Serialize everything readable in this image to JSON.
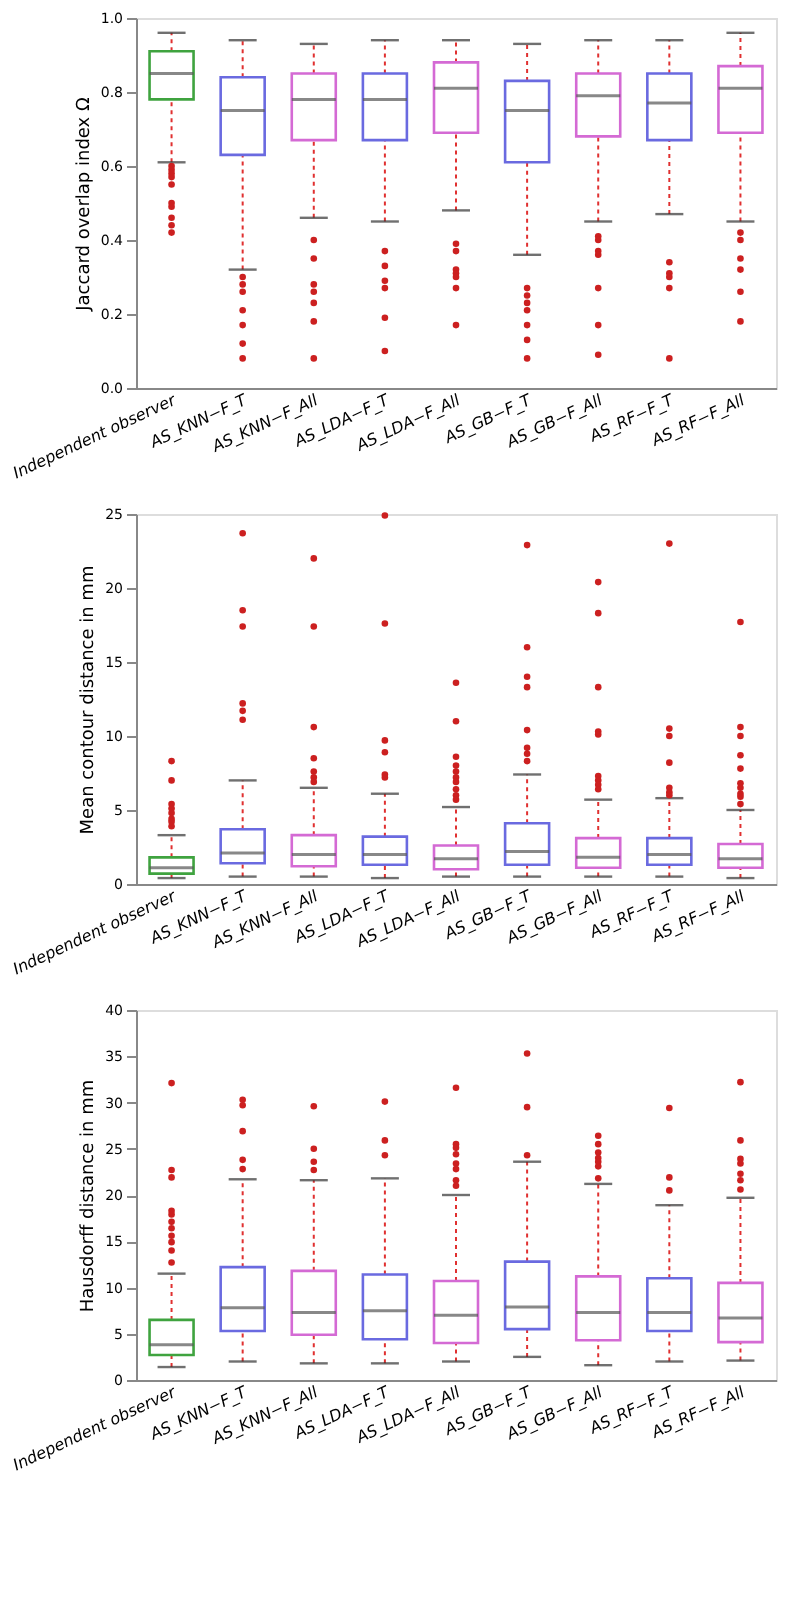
{
  "chart_data": [
    {
      "type": "box",
      "ylabel": "Jaccard overlap index Ω",
      "ylim": [
        0,
        1
      ],
      "yticks": [
        {
          "value": 0,
          "label": "0.0"
        },
        0.2,
        0.4,
        0.6,
        0.8,
        {
          "value": 1,
          "label": "1.0"
        }
      ],
      "categories": [
        "Independent observer",
        "AS_KNN−F_T",
        "AS_KNN−F_All",
        "AS_LDA−F_T",
        "AS_LDA−F_All",
        "AS_GB−F_T",
        "AS_GB−F_All",
        "AS_RF−F_T",
        "AS_RF−F_All"
      ],
      "colors": [
        "#3fa33f",
        "#6a6ae0",
        "#d46ad4",
        "#6a6ae0",
        "#d46ad4",
        "#6a6ae0",
        "#d46ad4",
        "#6a6ae0",
        "#d46ad4"
      ],
      "boxes": [
        {
          "low": 0.61,
          "q1": 0.78,
          "median": 0.85,
          "q3": 0.91,
          "high": 0.96,
          "outliers": [
            0.6,
            0.59,
            0.58,
            0.57,
            0.55,
            0.5,
            0.49,
            0.46,
            0.44,
            0.42
          ]
        },
        {
          "low": 0.32,
          "q1": 0.63,
          "median": 0.75,
          "q3": 0.84,
          "high": 0.94,
          "outliers": [
            0.3,
            0.28,
            0.26,
            0.21,
            0.17,
            0.12,
            0.08
          ]
        },
        {
          "low": 0.46,
          "q1": 0.67,
          "median": 0.78,
          "q3": 0.85,
          "high": 0.93,
          "outliers": [
            0.4,
            0.35,
            0.28,
            0.26,
            0.23,
            0.18,
            0.08
          ]
        },
        {
          "low": 0.45,
          "q1": 0.67,
          "median": 0.78,
          "q3": 0.85,
          "high": 0.94,
          "outliers": [
            0.37,
            0.33,
            0.29,
            0.27,
            0.19,
            0.1
          ]
        },
        {
          "low": 0.48,
          "q1": 0.69,
          "median": 0.81,
          "q3": 0.88,
          "high": 0.94,
          "outliers": [
            0.39,
            0.37,
            0.32,
            0.31,
            0.3,
            0.27,
            0.17
          ]
        },
        {
          "low": 0.36,
          "q1": 0.61,
          "median": 0.75,
          "q3": 0.83,
          "high": 0.93,
          "outliers": [
            0.27,
            0.25,
            0.23,
            0.21,
            0.17,
            0.13,
            0.08
          ]
        },
        {
          "low": 0.45,
          "q1": 0.68,
          "median": 0.79,
          "q3": 0.85,
          "high": 0.94,
          "outliers": [
            0.41,
            0.4,
            0.37,
            0.36,
            0.27,
            0.17,
            0.09
          ]
        },
        {
          "low": 0.47,
          "q1": 0.67,
          "median": 0.77,
          "q3": 0.85,
          "high": 0.94,
          "outliers": [
            0.34,
            0.31,
            0.3,
            0.27,
            0.08
          ]
        },
        {
          "low": 0.45,
          "q1": 0.69,
          "median": 0.81,
          "q3": 0.87,
          "high": 0.96,
          "outliers": [
            0.42,
            0.4,
            0.35,
            0.32,
            0.26,
            0.18
          ]
        }
      ]
    },
    {
      "type": "box",
      "ylabel": "Mean contour distance in mm",
      "ylim": [
        0,
        25
      ],
      "yticks": [
        0,
        5,
        10,
        15,
        20,
        25
      ],
      "categories": [
        "Independent observer",
        "AS_KNN−F_T",
        "AS_KNN−F_All",
        "AS_LDA−F_T",
        "AS_LDA−F_All",
        "AS_GB−F_T",
        "AS_GB−F_All",
        "AS_RF−F_T",
        "AS_RF−F_All"
      ],
      "colors": [
        "#3fa33f",
        "#6a6ae0",
        "#d46ad4",
        "#6a6ae0",
        "#d46ad4",
        "#6a6ae0",
        "#d46ad4",
        "#6a6ae0",
        "#d46ad4"
      ],
      "boxes": [
        {
          "low": 0.4,
          "q1": 0.7,
          "median": 1.1,
          "q3": 1.8,
          "high": 3.3,
          "outliers": [
            8.3,
            7.0,
            5.4,
            5.1,
            4.8,
            4.4,
            4.2,
            3.9
          ]
        },
        {
          "low": 0.5,
          "q1": 1.4,
          "median": 2.1,
          "q3": 3.7,
          "high": 7.0,
          "outliers": [
            23.7,
            18.5,
            17.4,
            12.2,
            11.7,
            11.1
          ]
        },
        {
          "low": 0.5,
          "q1": 1.2,
          "median": 2.0,
          "q3": 3.3,
          "high": 6.5,
          "outliers": [
            22.0,
            17.4,
            10.6,
            8.5,
            7.6,
            7.2,
            6.9
          ]
        },
        {
          "low": 0.4,
          "q1": 1.3,
          "median": 2.0,
          "q3": 3.2,
          "high": 6.1,
          "outliers": [
            24.9,
            17.6,
            9.7,
            8.9,
            7.4,
            7.2
          ]
        },
        {
          "low": 0.5,
          "q1": 1.0,
          "median": 1.7,
          "q3": 2.6,
          "high": 5.2,
          "outliers": [
            13.6,
            11.0,
            8.6,
            8.0,
            7.6,
            7.2,
            6.9,
            6.4,
            6.0,
            5.7
          ]
        },
        {
          "low": 0.5,
          "q1": 1.3,
          "median": 2.2,
          "q3": 4.1,
          "high": 7.4,
          "outliers": [
            22.9,
            16.0,
            14.0,
            13.3,
            10.4,
            9.2,
            8.8,
            8.3
          ]
        },
        {
          "low": 0.5,
          "q1": 1.1,
          "median": 1.8,
          "q3": 3.1,
          "high": 5.7,
          "outliers": [
            20.4,
            18.3,
            13.3,
            10.3,
            10.1,
            7.3,
            7.0,
            6.7,
            6.4
          ]
        },
        {
          "low": 0.5,
          "q1": 1.3,
          "median": 2.0,
          "q3": 3.1,
          "high": 5.8,
          "outliers": [
            23.0,
            10.5,
            10.0,
            8.2,
            6.5,
            6.2,
            6.0
          ]
        },
        {
          "low": 0.4,
          "q1": 1.1,
          "median": 1.7,
          "q3": 2.7,
          "high": 5.0,
          "outliers": [
            17.7,
            10.6,
            10.0,
            8.7,
            7.8,
            6.8,
            6.5,
            6.1,
            5.9,
            5.4
          ]
        }
      ]
    },
    {
      "type": "box",
      "ylabel": "Hausdorff distance in mm",
      "ylim": [
        0,
        40
      ],
      "yticks": [
        0,
        5,
        10,
        15,
        20,
        25,
        30,
        35,
        40
      ],
      "categories": [
        "Independent observer",
        "AS_KNN−F_T",
        "AS_KNN−F_All",
        "AS_LDA−F_T",
        "AS_LDA−F_All",
        "AS_GB−F_T",
        "AS_GB−F_All",
        "AS_RF−F_T",
        "AS_RF−F_All"
      ],
      "colors": [
        "#3fa33f",
        "#6a6ae0",
        "#d46ad4",
        "#6a6ae0",
        "#d46ad4",
        "#6a6ae0",
        "#d46ad4",
        "#6a6ae0",
        "#d46ad4"
      ],
      "boxes": [
        {
          "low": 1.4,
          "q1": 2.7,
          "median": 3.8,
          "q3": 6.5,
          "high": 11.5,
          "outliers": [
            32.1,
            22.7,
            21.9,
            18.3,
            17.9,
            17.1,
            16.4,
            15.6,
            14.9,
            14.0,
            12.7
          ]
        },
        {
          "low": 2.0,
          "q1": 5.3,
          "median": 7.8,
          "q3": 12.2,
          "high": 21.7,
          "outliers": [
            30.3,
            29.7,
            26.9,
            23.8,
            22.8
          ]
        },
        {
          "low": 1.8,
          "q1": 4.9,
          "median": 7.3,
          "q3": 11.8,
          "high": 21.6,
          "outliers": [
            29.6,
            25.0,
            23.6,
            22.7
          ]
        },
        {
          "low": 1.8,
          "q1": 4.4,
          "median": 7.5,
          "q3": 11.4,
          "high": 21.8,
          "outliers": [
            30.1,
            25.9,
            24.3
          ]
        },
        {
          "low": 2.0,
          "q1": 4.0,
          "median": 7.0,
          "q3": 10.7,
          "high": 20.0,
          "outliers": [
            31.6,
            25.5,
            25.1,
            24.4,
            23.4,
            22.8,
            21.6,
            21.0
          ]
        },
        {
          "low": 2.5,
          "q1": 5.5,
          "median": 7.9,
          "q3": 12.8,
          "high": 23.6,
          "outliers": [
            35.3,
            29.5,
            24.3
          ]
        },
        {
          "low": 1.6,
          "q1": 4.3,
          "median": 7.3,
          "q3": 11.2,
          "high": 21.2,
          "outliers": [
            26.4,
            25.5,
            24.6,
            24.0,
            23.6,
            23.1,
            21.8
          ]
        },
        {
          "low": 2.0,
          "q1": 5.3,
          "median": 7.3,
          "q3": 11.0,
          "high": 18.9,
          "outliers": [
            29.4,
            21.9,
            20.5
          ]
        },
        {
          "low": 2.1,
          "q1": 4.1,
          "median": 6.7,
          "q3": 10.5,
          "high": 19.7,
          "outliers": [
            32.2,
            25.9,
            23.9,
            23.4,
            22.3,
            21.6,
            20.6
          ]
        }
      ]
    }
  ]
}
